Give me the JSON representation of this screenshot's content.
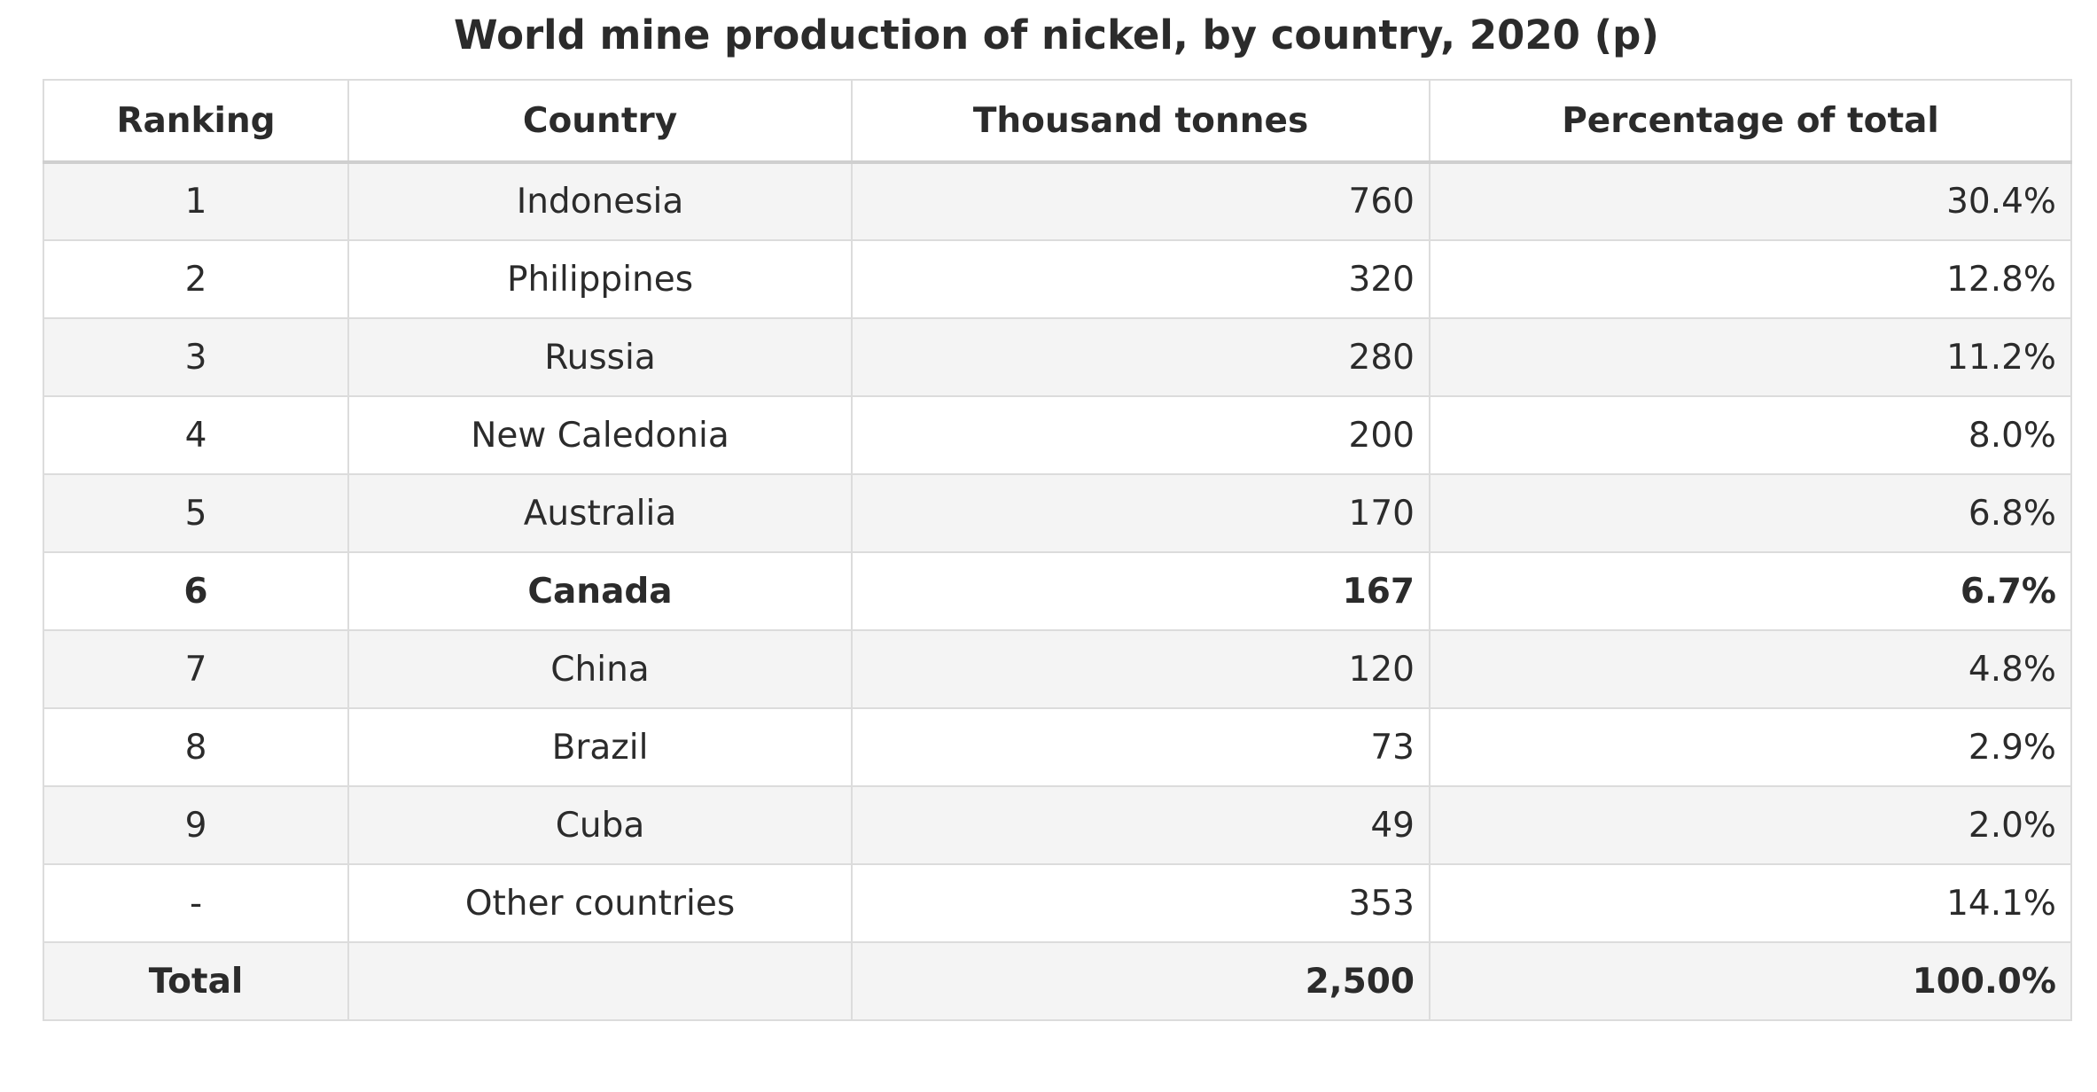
{
  "title": "World mine production of nickel, by country, 2020 (p)",
  "columns": [
    "Ranking",
    "Country",
    "Thousand tonnes",
    "Percentage of total"
  ],
  "rows": [
    {
      "rank": "1",
      "country": "Indonesia",
      "tonnes": "760",
      "pct": "30.4%"
    },
    {
      "rank": "2",
      "country": "Philippines",
      "tonnes": "320",
      "pct": "12.8%"
    },
    {
      "rank": "3",
      "country": "Russia",
      "tonnes": "280",
      "pct": "11.2%"
    },
    {
      "rank": "4",
      "country": "New Caledonia",
      "tonnes": "200",
      "pct": "8.0%"
    },
    {
      "rank": "5",
      "country": "Australia",
      "tonnes": "170",
      "pct": "6.8%"
    },
    {
      "rank": "6",
      "country": "Canada",
      "tonnes": "167",
      "pct": "6.7%"
    },
    {
      "rank": "7",
      "country": "China",
      "tonnes": "120",
      "pct": "4.8%"
    },
    {
      "rank": "8",
      "country": "Brazil",
      "tonnes": "73",
      "pct": "2.9%"
    },
    {
      "rank": "9",
      "country": "Cuba",
      "tonnes": "49",
      "pct": "2.0%"
    },
    {
      "rank": "-",
      "country": "Other countries",
      "tonnes": "353",
      "pct": "14.1%"
    }
  ],
  "total": {
    "label": "Total",
    "country": "",
    "tonnes": "2,500",
    "pct": "100.0%"
  },
  "highlighted_country": "Canada"
}
